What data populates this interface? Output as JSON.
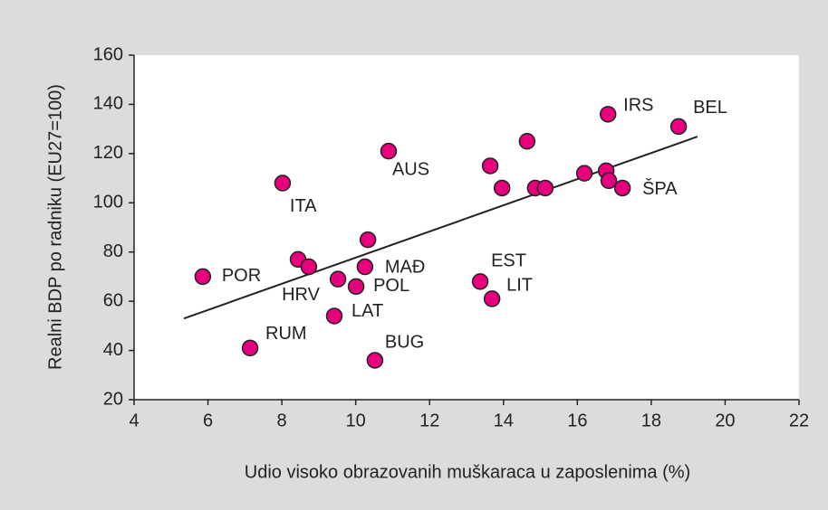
{
  "chart_data": {
    "type": "scatter",
    "xlabel": "Udio visoko obrazovanih muškaraca u zaposlenima (%)",
    "ylabel": "Realni BDP po radniku (EU27=100)",
    "color": "#e6007e",
    "labels": [
      "POR",
      "RUM",
      "ITA",
      null,
      null,
      "HRV",
      "LAT",
      "POL",
      "MAĐ",
      null,
      "BUG",
      "AUS",
      "EST",
      "LIT",
      null,
      null,
      null,
      null,
      null,
      null,
      null,
      null,
      "IRS",
      "ŠPA",
      "BEL"
    ],
    "x": [
      5.86,
      7.14,
      8.02,
      8.44,
      8.73,
      9.52,
      9.42,
      10.01,
      10.25,
      10.33,
      10.52,
      10.89,
      13.37,
      13.69,
      13.64,
      13.96,
      14.64,
      14.86,
      15.13,
      16.19,
      16.78,
      16.85,
      16.83,
      17.22,
      18.74
    ],
    "y": [
      70,
      41,
      108,
      77,
      74,
      69,
      54,
      66,
      74,
      85,
      36,
      121,
      68,
      61,
      115,
      106,
      125,
      106,
      106,
      112,
      113,
      109,
      136,
      106,
      131
    ],
    "trendline": {
      "x": [
        5.35,
        19.25
      ],
      "y": [
        53,
        126.9
      ]
    },
    "xlim": [
      4,
      22
    ],
    "xticks": [
      4,
      6,
      8,
      10,
      12,
      14,
      16,
      18,
      20,
      22
    ],
    "ylim": [
      20,
      160
    ],
    "yticks": [
      20,
      40,
      60,
      80,
      100,
      120,
      140,
      160
    ]
  }
}
